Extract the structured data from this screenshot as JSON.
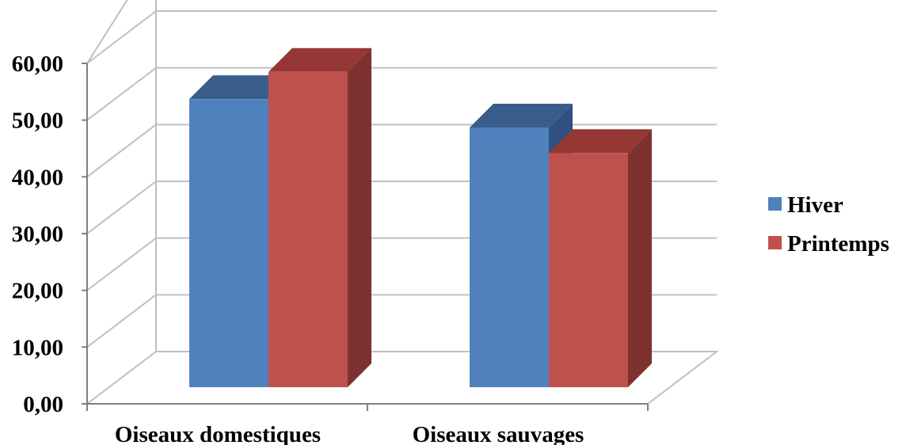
{
  "chart_data": {
    "type": "bar",
    "style": "3d-clustered-column",
    "categories": [
      "Oiseaux domestiques",
      "Oiseaux sauvages"
    ],
    "series": [
      {
        "name": "Hiver",
        "values": [
          52.3,
          47.3
        ],
        "color": "#4F81BD",
        "top_color": "#385D8A",
        "side_color": "#2F5080"
      },
      {
        "name": "Printemps",
        "values": [
          57.1,
          42.8
        ],
        "color": "#C0504D",
        "top_color": "#953735",
        "side_color": "#7E3230"
      }
    ],
    "y_ticks": [
      "0,00",
      "10,00",
      "20,00",
      "30,00",
      "40,00",
      "50,00",
      "60,00"
    ],
    "ylim": [
      0,
      60
    ],
    "grid": true,
    "legend_position": "right",
    "title": "",
    "xlabel": "",
    "ylabel": ""
  }
}
